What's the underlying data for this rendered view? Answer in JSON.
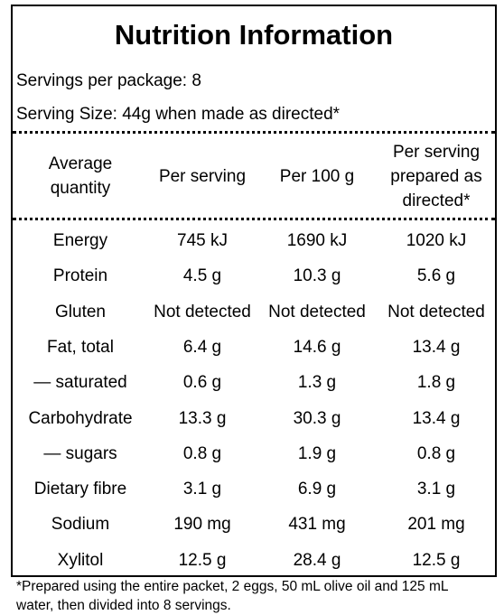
{
  "header": {
    "title": "Nutrition Information",
    "servings": "Servings per package: 8",
    "serving_size": "Serving Size: 44g when made as directed*"
  },
  "table": {
    "headers": [
      "Average quantity",
      "Per serving",
      "Per 100 g",
      "Per serving prepared as directed*"
    ],
    "rows": [
      [
        "Energy",
        "745 kJ",
        "1690 kJ",
        "1020 kJ"
      ],
      [
        "Protein",
        "4.5 g",
        "10.3 g",
        "5.6 g"
      ],
      [
        "Gluten",
        "Not detected",
        "Not detected",
        "Not detected"
      ],
      [
        "Fat, total",
        "6.4 g",
        "14.6 g",
        "13.4 g"
      ],
      [
        "— saturated",
        "0.6 g",
        "1.3 g",
        "1.8 g"
      ],
      [
        "Carbohydrate",
        "13.3 g",
        "30.3 g",
        "13.4 g"
      ],
      [
        "— sugars",
        "0.8 g",
        "1.9 g",
        "0.8 g"
      ],
      [
        "Dietary fibre",
        "3.1 g",
        "6.9 g",
        "3.1 g"
      ],
      [
        "Sodium",
        "190 mg",
        "431 mg",
        "201 mg"
      ],
      [
        "Xylitol",
        "12.5 g",
        "28.4 g",
        "12.5 g"
      ]
    ]
  },
  "footnote": "*Prepared using the entire packet, 2 eggs, 50 mL olive oil and 125 mL water, then divided into 8 servings."
}
